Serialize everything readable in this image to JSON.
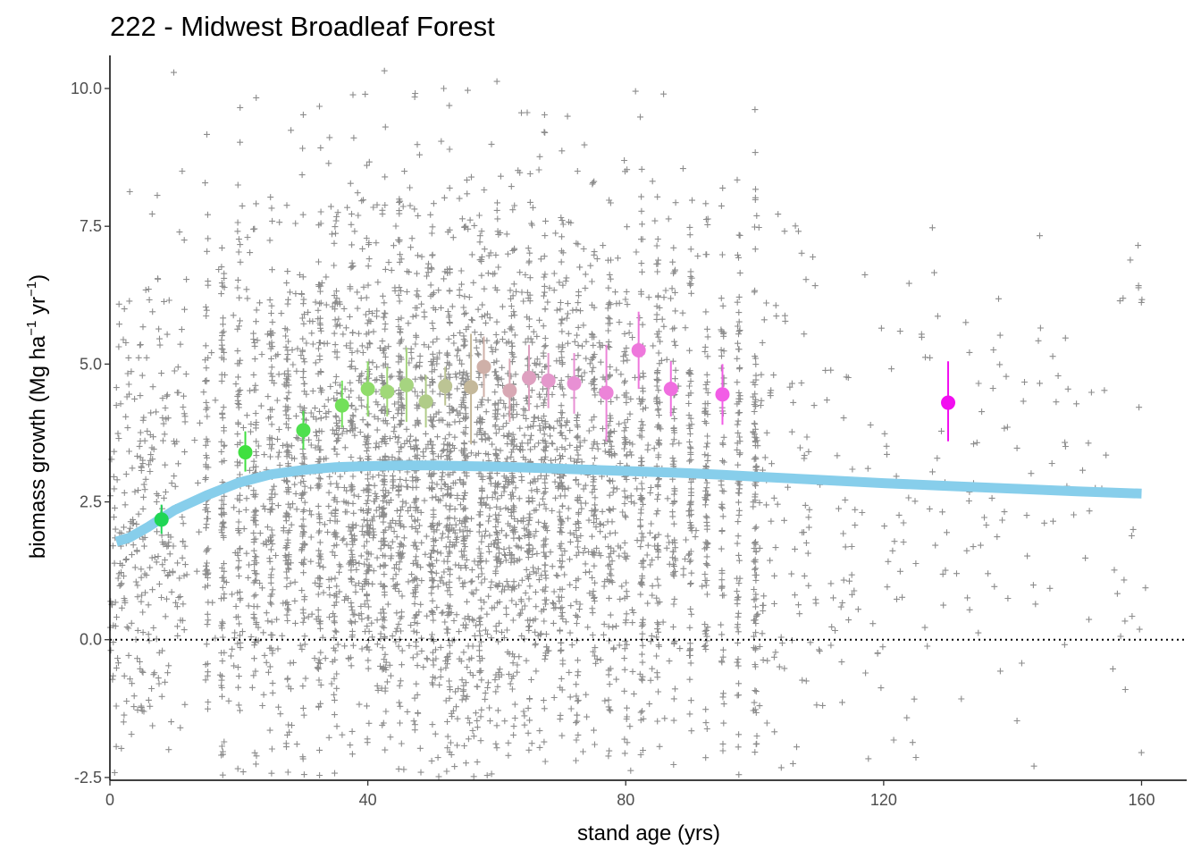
{
  "chart_data": {
    "type": "scatter",
    "title": "222 - Midwest Broadleaf Forest",
    "xlabel": "stand age (yrs)",
    "ylabel": {
      "text_main": "biomass growth (Mg ha",
      "sup1": "−1",
      "text_mid": " yr",
      "sup2": "−1",
      "text_end": ")"
    },
    "xlim": [
      0,
      167
    ],
    "ylim": [
      -2.55,
      10.6
    ],
    "x_ticks": [
      0,
      40,
      80,
      120,
      160
    ],
    "x_tick_labels": [
      "0",
      "40",
      "80",
      "120",
      "160"
    ],
    "y_ticks": [
      -2.5,
      0,
      2.5,
      5,
      7.5,
      10
    ],
    "y_tick_labels": [
      "-2.5",
      "0.0",
      "2.5",
      "5.0",
      "7.5",
      "10.0"
    ],
    "grid": false,
    "reference_line": {
      "y": 0,
      "style": "dotted",
      "color": "#000000"
    },
    "scatter_style": {
      "marker": "+",
      "color": "#000000",
      "alpha": 0.45,
      "approx_count": 5200
    },
    "trend_line": {
      "color": "#87ceeb",
      "x": [
        1,
        3,
        6,
        10,
        15,
        20,
        25,
        30,
        35,
        40,
        45,
        50,
        55,
        60,
        65,
        70,
        75,
        80,
        85,
        90,
        95,
        100,
        110,
        120,
        130,
        140,
        150,
        160
      ],
      "y": [
        1.78,
        1.85,
        2.05,
        2.35,
        2.62,
        2.85,
        3.0,
        3.08,
        3.13,
        3.15,
        3.16,
        3.16,
        3.15,
        3.14,
        3.12,
        3.1,
        3.08,
        3.06,
        3.04,
        3.02,
        2.99,
        2.96,
        2.9,
        2.84,
        2.79,
        2.74,
        2.69,
        2.65
      ]
    },
    "series": [
      {
        "x": 8,
        "y": 2.18,
        "lo": 1.92,
        "hi": 2.45,
        "color": "#1fd655"
      },
      {
        "x": 21,
        "y": 3.4,
        "lo": 3.05,
        "hi": 3.78,
        "color": "#3fe03f"
      },
      {
        "x": 30,
        "y": 3.8,
        "lo": 3.45,
        "hi": 4.15,
        "color": "#4fe04f"
      },
      {
        "x": 36,
        "y": 4.25,
        "lo": 3.85,
        "hi": 4.7,
        "color": "#72e05a"
      },
      {
        "x": 40,
        "y": 4.55,
        "lo": 4.05,
        "hi": 5.05,
        "color": "#8fdc6a"
      },
      {
        "x": 43,
        "y": 4.5,
        "lo": 4.05,
        "hi": 4.95,
        "color": "#a0d878"
      },
      {
        "x": 46,
        "y": 4.62,
        "lo": 3.95,
        "hi": 5.3,
        "color": "#a6d480"
      },
      {
        "x": 49,
        "y": 4.32,
        "lo": 3.85,
        "hi": 4.8,
        "color": "#b0cc88"
      },
      {
        "x": 52,
        "y": 4.6,
        "lo": 4.25,
        "hi": 4.95,
        "color": "#bcc494"
      },
      {
        "x": 56,
        "y": 4.58,
        "lo": 3.55,
        "hi": 5.55,
        "color": "#c4b89a"
      },
      {
        "x": 58,
        "y": 4.95,
        "lo": 4.4,
        "hi": 5.5,
        "color": "#cfb0a8"
      },
      {
        "x": 62,
        "y": 4.52,
        "lo": 3.95,
        "hi": 5.1,
        "color": "#d8a8b4"
      },
      {
        "x": 65,
        "y": 4.75,
        "lo": 4.15,
        "hi": 5.35,
        "color": "#dea0c0"
      },
      {
        "x": 68,
        "y": 4.7,
        "lo": 4.2,
        "hi": 5.2,
        "color": "#e498cc"
      },
      {
        "x": 72,
        "y": 4.65,
        "lo": 4.1,
        "hi": 5.2,
        "color": "#e890d4"
      },
      {
        "x": 77,
        "y": 4.48,
        "lo": 3.6,
        "hi": 5.35,
        "color": "#ec84d8"
      },
      {
        "x": 82,
        "y": 5.25,
        "lo": 4.55,
        "hi": 5.95,
        "color": "#ee78dc"
      },
      {
        "x": 87,
        "y": 4.55,
        "lo": 4.05,
        "hi": 5.05,
        "color": "#f06ee0"
      },
      {
        "x": 95,
        "y": 4.45,
        "lo": 3.9,
        "hi": 5.0,
        "color": "#f25ce6"
      },
      {
        "x": 130,
        "y": 4.3,
        "lo": 3.6,
        "hi": 5.05,
        "color": "#f20ef0"
      }
    ]
  }
}
